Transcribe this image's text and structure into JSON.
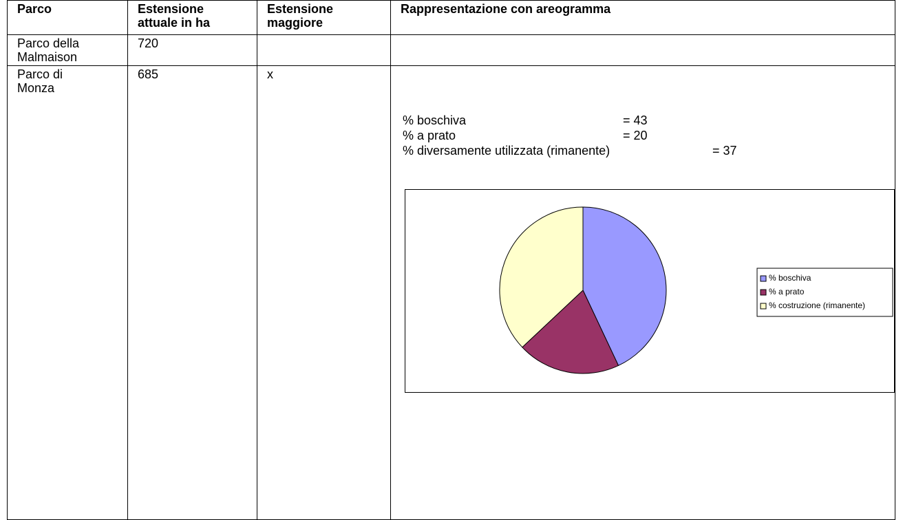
{
  "table": {
    "header": [
      "Parco",
      "Estensione attuale in ha",
      "Estensione maggiore",
      "Rappresentazione con areogramma"
    ],
    "rows": [
      {
        "parco": "Parco della Malmaison",
        "estensione": "720"
      },
      {
        "parco": "Parco di Monza",
        "estensione": "685",
        "maggiore": "x",
        "notes": [
          {
            "label": "% boschiva",
            "value": "= 43"
          },
          {
            "label": "% a prato",
            "value": "= 20"
          },
          {
            "label": "% diversamente utilizzata (rimanente)",
            "value": "= 37"
          }
        ]
      }
    ]
  },
  "chart_data": {
    "type": "pie",
    "categories": [
      "% boschiva",
      "% a prato",
      "% costruzione (rimanente)"
    ],
    "values": [
      43,
      20,
      37
    ],
    "colors": [
      "#9999ff",
      "#993366",
      "#ffffcc"
    ],
    "legend": "right"
  }
}
